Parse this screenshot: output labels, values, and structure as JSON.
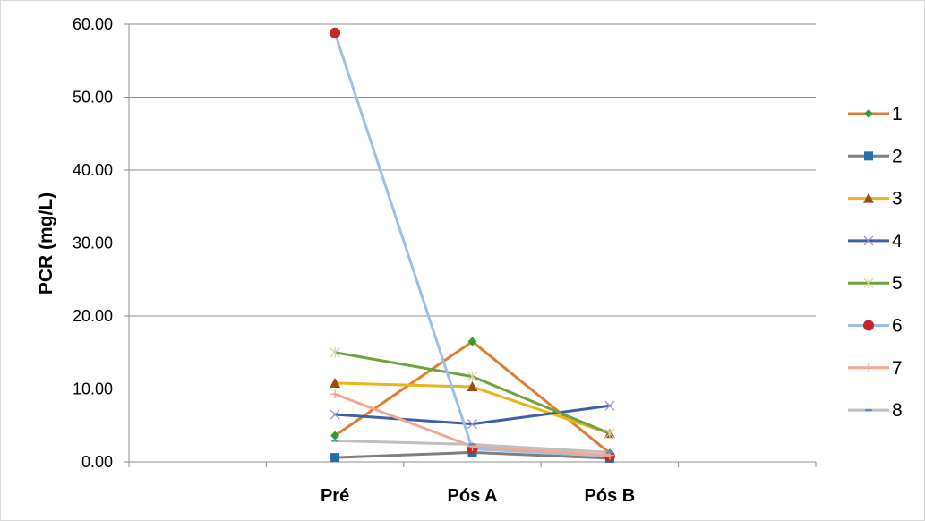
{
  "chart_data": {
    "type": "line",
    "title": "",
    "xlabel": "",
    "ylabel": "PCR (mg/L)",
    "categories": [
      "",
      "Pré",
      "Pós A",
      "Pós B",
      ""
    ],
    "ylim": [
      0,
      60
    ],
    "yticks": [
      "0.00",
      "10.00",
      "20.00",
      "30.00",
      "40.00",
      "50.00",
      "60.00"
    ],
    "grid": true,
    "legend_position": "right",
    "series": [
      {
        "name": "1",
        "color": "#e07b32",
        "marker_color": "#2e9e35",
        "marker": "diamond",
        "values": [
          null,
          3.6,
          16.5,
          1.2,
          null
        ]
      },
      {
        "name": "2",
        "color": "#7f7f7f",
        "marker_color": "#1f6fa8",
        "marker": "square",
        "values": [
          null,
          0.6,
          1.3,
          0.5,
          null
        ]
      },
      {
        "name": "3",
        "color": "#e8b51a",
        "marker_color": "#9c4a10",
        "marker": "triangle",
        "values": [
          null,
          10.8,
          10.3,
          3.9,
          null
        ]
      },
      {
        "name": "4",
        "color": "#3e5ea8",
        "marker_color": "#9f8fd0",
        "marker": "x",
        "values": [
          null,
          6.5,
          5.2,
          7.7,
          null
        ]
      },
      {
        "name": "5",
        "color": "#6fa13d",
        "marker_color": "#d8d0a8",
        "marker": "star",
        "values": [
          null,
          15.0,
          11.7,
          3.9,
          null
        ]
      },
      {
        "name": "6",
        "color": "#9dbfe6",
        "marker_color": "#c0282d",
        "marker": "circle",
        "values": [
          null,
          58.8,
          1.8,
          0.8,
          null
        ]
      },
      {
        "name": "7",
        "color": "#f2a792",
        "marker_color": "#f2a792",
        "marker": "plus",
        "values": [
          null,
          9.3,
          2.1,
          0.9,
          null
        ]
      },
      {
        "name": "8",
        "color": "#bfbfbf",
        "marker_color": "#5b8fc7",
        "marker": "dash",
        "values": [
          null,
          2.9,
          2.4,
          1.3,
          null
        ]
      }
    ]
  }
}
